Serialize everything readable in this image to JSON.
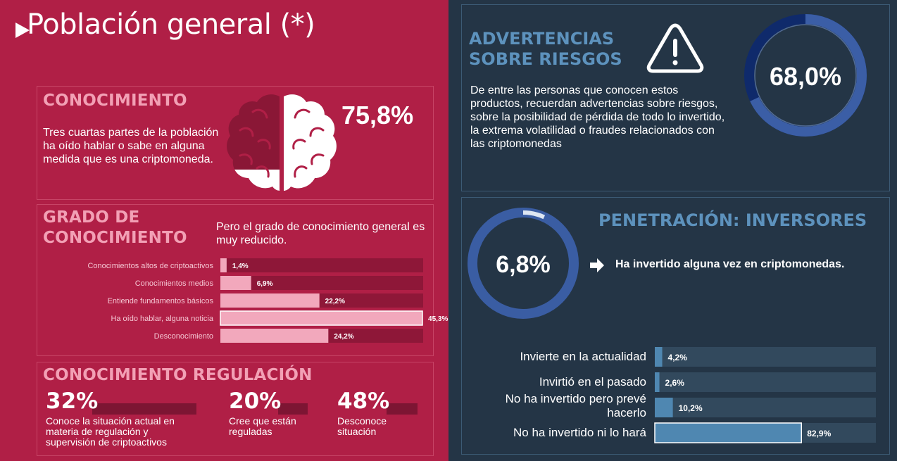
{
  "page": {
    "title": "Población general (*)"
  },
  "conocimiento": {
    "heading": "CONOCIMIENTO",
    "text": "Tres cuartas partes de la población ha oído hablar o sabe en alguna medida que es una criptomoneda.",
    "percent": "75,8%",
    "value": 75.8,
    "colors": {
      "brain": "#ffffff",
      "fill": "#8a1736"
    }
  },
  "grado": {
    "heading": "GRADO DE CONOCIMIENTO",
    "text": "Pero el grado de conocimiento general es muy reducido."
  },
  "regulacion": {
    "heading": "CONOCIMIENTO REGULACIÓN",
    "items": [
      {
        "pct": "32%",
        "desc": "Conoce la situación actual en materia de regulación y supervisión de criptoactivos"
      },
      {
        "pct": "20%",
        "desc": "Cree que están reguladas"
      },
      {
        "pct": "48%",
        "desc": "Desconoce situación"
      }
    ]
  },
  "advertencias": {
    "title_line1": "ADVERTENCIAS",
    "title_line2": "SOBRE RIESGOS",
    "text": "De entre las personas que conocen estos productos, recuerdan advertencias sobre riesgos, sobre la posibilidad de pérdida de todo lo invertido, la extrema volatilidad o fraudes relacionados con las criptomonedas",
    "percent": "68,0%",
    "value": 68.0
  },
  "penetracion": {
    "title": "PENETRACIÓN: INVERSORES",
    "percent": "6,8%",
    "value": 6.8,
    "text": "Ha invertido alguna vez en criptomonedas."
  },
  "chart_data": [
    {
      "type": "bar",
      "orientation": "horizontal",
      "categories": [
        "Conocimientos altos de criptoactivos",
        "Conocimientos medios",
        "Entiende fundamentos básicos",
        "Ha oído hablar, alguna noticia",
        "Desconocimiento"
      ],
      "values": [
        1.4,
        6.9,
        22.2,
        45.3,
        24.2
      ],
      "labels": [
        "1,4%",
        "6,9%",
        "22,2%",
        "45,3%",
        "24,2%"
      ],
      "xlim": [
        0,
        100
      ],
      "colors": {
        "bar": "#f2a8bc",
        "track": "#8e1738"
      }
    },
    {
      "type": "bar",
      "orientation": "horizontal",
      "categories": [
        "Invierte en la actualidad",
        "Invirtió en el pasado",
        "No ha invertido pero prevé hacerlo",
        "No ha invertido ni lo hará"
      ],
      "values": [
        4.2,
        2.6,
        10.2,
        82.9
      ],
      "labels": [
        "4,2%",
        "2,6%",
        "10,2%",
        "82,9%"
      ],
      "xlim": [
        0,
        100
      ],
      "colors": {
        "bar": "#4f87b1",
        "track": "#32495d"
      }
    }
  ]
}
